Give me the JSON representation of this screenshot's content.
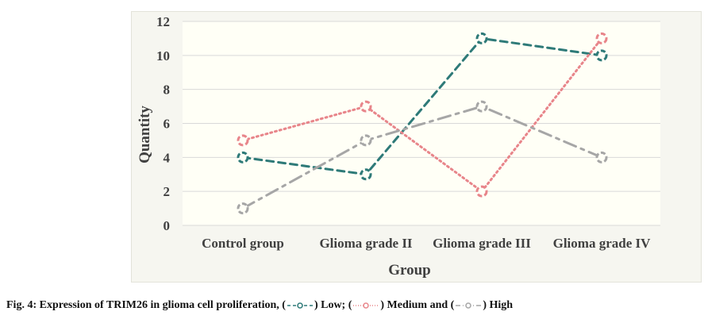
{
  "chart_data": {
    "type": "line",
    "title": "",
    "xlabel": "Group",
    "ylabel": "Quantity",
    "categories": [
      "Control group",
      "Glioma grade II",
      "Glioma grade III",
      "Glioma grade IV"
    ],
    "ylim": [
      0,
      12
    ],
    "yticks": [
      0,
      2,
      4,
      6,
      8,
      10,
      12
    ],
    "grid": "horizontal",
    "legend": "in caption",
    "series": [
      {
        "name": "Low",
        "values": [
          4,
          3,
          11,
          10
        ],
        "color": "#2e7a78",
        "style": "dashed",
        "marker": "open-circle"
      },
      {
        "name": "Medium",
        "values": [
          5,
          7,
          2,
          11
        ],
        "color": "#e8858a",
        "style": "dotted",
        "marker": "open-circle"
      },
      {
        "name": "High",
        "values": [
          1,
          5,
          7,
          4
        ],
        "color": "#a6a6a6",
        "style": "dash-dot",
        "marker": "open-circle"
      }
    ]
  },
  "caption": {
    "prefix": "Fig. 4: Expression of TRIM26 in glioma cell proliferation, (",
    "low_sep": ") Low; (",
    "medium_sep": ") Medium and (",
    "high_end": ") High"
  },
  "colors": {
    "plot_background": "#fffff6",
    "panel_background": "#f6f6f0",
    "gridline": "#d9d9d9",
    "text": "#404040"
  }
}
